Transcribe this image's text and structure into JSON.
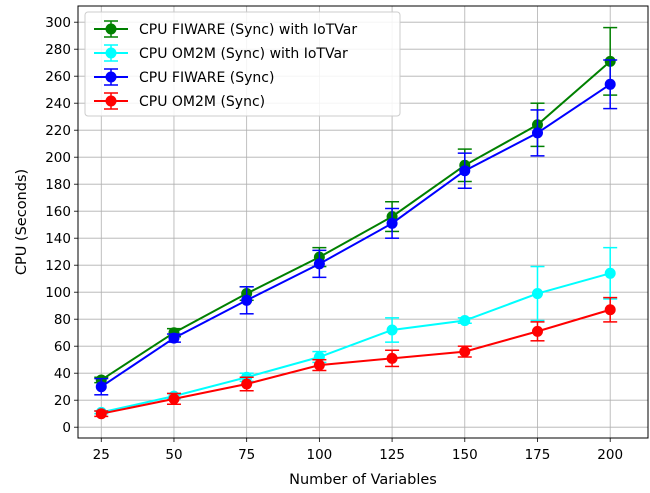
{
  "chart_data": {
    "type": "line",
    "title": "",
    "xlabel": "Number of Variables",
    "ylabel": "CPU (Seconds)",
    "x": [
      25,
      50,
      75,
      100,
      125,
      150,
      175,
      200
    ],
    "xlim": [
      17,
      213
    ],
    "ylim": [
      -8,
      312
    ],
    "yticks": [
      0,
      20,
      40,
      60,
      80,
      100,
      120,
      140,
      160,
      180,
      200,
      220,
      240,
      260,
      280,
      300
    ],
    "grid": true,
    "legend_position": "top-left",
    "series": [
      {
        "name": "CPU FIWARE (Sync) with IoTVar",
        "color": "#008000",
        "values": [
          35,
          70,
          99,
          126,
          156,
          194,
          224,
          271
        ],
        "error": [
          2,
          3,
          5,
          7,
          11,
          12,
          16,
          25
        ]
      },
      {
        "name": "CPU OM2M (Sync) with IoTVar",
        "color": "#00ffff",
        "values": [
          11,
          23,
          37,
          52,
          72,
          79,
          99,
          114
        ],
        "error": [
          1,
          2,
          3,
          4,
          9,
          2,
          20,
          19
        ]
      },
      {
        "name": "CPU FIWARE (Sync)",
        "color": "#0000ff",
        "values": [
          30,
          66,
          94,
          121,
          151,
          190,
          218,
          254
        ],
        "error": [
          6,
          3,
          10,
          10,
          11,
          13,
          17,
          18
        ]
      },
      {
        "name": "CPU OM2M (Sync)",
        "color": "#ff0000",
        "values": [
          10,
          21,
          32,
          46,
          51,
          56,
          71,
          87
        ],
        "error": [
          2,
          4,
          5,
          4,
          6,
          4,
          7,
          9
        ]
      }
    ]
  }
}
